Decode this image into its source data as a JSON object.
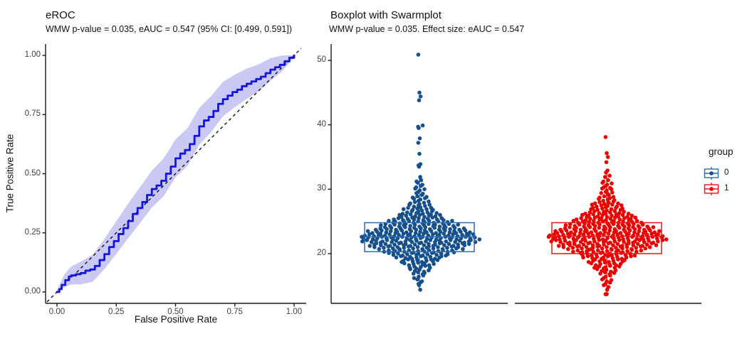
{
  "left_panel": {
    "title": "eROC",
    "subtitle": "WMW p-value = 0.035, eAUC = 0.547 (95% CI: [0.499, 0.591])",
    "xlabel": "False Positive Rate",
    "ylabel": "True Positive Rate",
    "x_tick_labels": [
      "0.00",
      "0.25",
      "0.50",
      "0.75",
      "1.00"
    ],
    "y_tick_labels": [
      "0.00",
      "0.25",
      "0.50",
      "0.75",
      "1.00"
    ]
  },
  "right_panel": {
    "title": "Boxplot with Swarmplot",
    "subtitle": "WMW p-value = 0.035. Effect size: eAUC = 0.547",
    "y_tick_labels": [
      "20",
      "30",
      "40",
      "50"
    ],
    "legend": {
      "title": "group",
      "items": [
        {
          "label": "0",
          "color": "#16508C",
          "box_color": "#2A6CB3"
        },
        {
          "label": "1",
          "color": "#ED0000",
          "box_color": "#EE1111"
        }
      ]
    }
  },
  "colors": {
    "roc_line": "#1414E0",
    "roc_ci_band": "#C9C9F3",
    "reference_line": "#000000",
    "axis": "#1a1a1a",
    "tick_text": "#404040",
    "group0": "#16508C",
    "group1": "#ED0000"
  },
  "chart_data": [
    {
      "type": "line",
      "title": "eROC",
      "subtitle": "WMW p-value = 0.035, eAUC = 0.547 (95% CI: [0.499, 0.591])",
      "xlabel": "False Positive Rate",
      "ylabel": "True Positive Rate",
      "xlim": [
        0,
        1
      ],
      "ylim": [
        0,
        1
      ],
      "x_ticks": [
        0,
        0.25,
        0.5,
        0.75,
        1
      ],
      "y_ticks": [
        0,
        0.25,
        0.5,
        0.75,
        1
      ],
      "grid": false,
      "annotations": {
        "wmw_p_value": 0.035,
        "eAUC": 0.547,
        "ci95": [
          0.499,
          0.591
        ]
      },
      "series": [
        {
          "name": "eROC curve",
          "style": "step",
          "points": [
            [
              0,
              0
            ],
            [
              0.01,
              0.012
            ],
            [
              0.02,
              0.03
            ],
            [
              0.035,
              0.05
            ],
            [
              0.05,
              0.065
            ],
            [
              0.06,
              0.07
            ],
            [
              0.08,
              0.075
            ],
            [
              0.1,
              0.08
            ],
            [
              0.12,
              0.09
            ],
            [
              0.14,
              0.095
            ],
            [
              0.16,
              0.11
            ],
            [
              0.18,
              0.135
            ],
            [
              0.2,
              0.16
            ],
            [
              0.22,
              0.19
            ],
            [
              0.24,
              0.215
            ],
            [
              0.26,
              0.245
            ],
            [
              0.28,
              0.27
            ],
            [
              0.3,
              0.3
            ],
            [
              0.32,
              0.33
            ],
            [
              0.34,
              0.355
            ],
            [
              0.36,
              0.38
            ],
            [
              0.38,
              0.41
            ],
            [
              0.4,
              0.435
            ],
            [
              0.42,
              0.45
            ],
            [
              0.44,
              0.47
            ],
            [
              0.46,
              0.5
            ],
            [
              0.48,
              0.53
            ],
            [
              0.5,
              0.565
            ],
            [
              0.52,
              0.585
            ],
            [
              0.54,
              0.6
            ],
            [
              0.56,
              0.625
            ],
            [
              0.58,
              0.66
            ],
            [
              0.6,
              0.7
            ],
            [
              0.62,
              0.725
            ],
            [
              0.64,
              0.74
            ],
            [
              0.66,
              0.765
            ],
            [
              0.68,
              0.795
            ],
            [
              0.7,
              0.815
            ],
            [
              0.72,
              0.83
            ],
            [
              0.74,
              0.845
            ],
            [
              0.76,
              0.855
            ],
            [
              0.78,
              0.87
            ],
            [
              0.8,
              0.88
            ],
            [
              0.82,
              0.89
            ],
            [
              0.84,
              0.9
            ],
            [
              0.86,
              0.91
            ],
            [
              0.88,
              0.925
            ],
            [
              0.9,
              0.94
            ],
            [
              0.92,
              0.95
            ],
            [
              0.94,
              0.96
            ],
            [
              0.96,
              0.975
            ],
            [
              0.98,
              0.99
            ],
            [
              1.0,
              1.0
            ]
          ]
        },
        {
          "name": "95% CI band",
          "style": "band",
          "points_flh": [
            [
              0,
              0,
              0.01
            ],
            [
              0.03,
              0.018,
              0.072
            ],
            [
              0.06,
              0.032,
              0.108
            ],
            [
              0.1,
              0.032,
              0.128
            ],
            [
              0.15,
              0.043,
              0.157
            ],
            [
              0.2,
              0.096,
              0.224
            ],
            [
              0.25,
              0.161,
              0.299
            ],
            [
              0.3,
              0.227,
              0.373
            ],
            [
              0.35,
              0.291,
              0.443
            ],
            [
              0.4,
              0.357,
              0.513
            ],
            [
              0.45,
              0.405,
              0.565
            ],
            [
              0.5,
              0.485,
              0.645
            ],
            [
              0.55,
              0.532,
              0.692
            ],
            [
              0.6,
              0.622,
              0.778
            ],
            [
              0.65,
              0.676,
              0.828
            ],
            [
              0.7,
              0.742,
              0.888
            ],
            [
              0.75,
              0.781,
              0.919
            ],
            [
              0.8,
              0.816,
              0.944
            ],
            [
              0.85,
              0.848,
              0.962
            ],
            [
              0.9,
              0.892,
              0.988
            ],
            [
              0.95,
              0.933,
              1.0
            ],
            [
              0.98,
              0.968,
              1.0
            ],
            [
              1.0,
              0.99,
              1.0
            ]
          ]
        },
        {
          "name": "chance diagonal",
          "style": "dashed",
          "points": [
            [
              0,
              0
            ],
            [
              1,
              1
            ]
          ]
        }
      ]
    },
    {
      "type": "swarm-boxplot",
      "title": "Boxplot with Swarmplot",
      "subtitle": "WMW p-value = 0.035. Effect size: eAUC = 0.547",
      "ylim": [
        12.5,
        52
      ],
      "y_ticks": [
        20,
        30,
        40,
        50
      ],
      "grid": false,
      "legend": {
        "title": "group",
        "position": "right"
      },
      "groups": [
        {
          "name": "0",
          "color": "#16508C",
          "box": {
            "q1": 20.3,
            "median": 22.6,
            "q3": 24.8,
            "whisker_low": 14.4,
            "whisker_high": 31.9
          },
          "swarm_profile": [
            [
              50.7,
              1
            ],
            [
              45.0,
              1
            ],
            [
              44.6,
              1
            ],
            [
              43.7,
              1
            ],
            [
              39.8,
              2
            ],
            [
              39.3,
              1
            ],
            [
              37.9,
              1
            ],
            [
              37.4,
              1
            ],
            [
              35.4,
              1
            ],
            [
              33.8,
              2
            ],
            [
              33.3,
              1
            ],
            [
              31.9,
              1
            ],
            [
              31.4,
              2
            ],
            [
              30.9,
              2
            ],
            [
              30.4,
              2
            ],
            [
              29.9,
              3
            ],
            [
              29.4,
              3
            ],
            [
              28.9,
              4
            ],
            [
              28.4,
              4
            ],
            [
              27.9,
              5
            ],
            [
              27.4,
              6
            ],
            [
              26.9,
              8
            ],
            [
              26.4,
              9
            ],
            [
              25.9,
              11
            ],
            [
              25.4,
              13
            ],
            [
              24.9,
              16
            ],
            [
              24.4,
              19
            ],
            [
              23.9,
              22
            ],
            [
              23.4,
              25
            ],
            [
              22.9,
              27
            ],
            [
              22.4,
              29
            ],
            [
              21.9,
              28
            ],
            [
              21.4,
              25
            ],
            [
              20.9,
              22
            ],
            [
              20.4,
              18
            ],
            [
              19.9,
              15
            ],
            [
              19.4,
              12
            ],
            [
              18.9,
              10
            ],
            [
              18.4,
              8
            ],
            [
              17.9,
              6
            ],
            [
              17.4,
              5
            ],
            [
              16.9,
              4
            ],
            [
              16.4,
              3
            ],
            [
              15.9,
              2
            ],
            [
              15.4,
              2
            ],
            [
              14.9,
              1
            ],
            [
              14.4,
              1
            ]
          ]
        },
        {
          "name": "1",
          "color": "#ED0000",
          "box": {
            "q1": 20.0,
            "median": 22.7,
            "q3": 24.8,
            "whisker_low": 13.6,
            "whisker_high": 33.0
          },
          "swarm_profile": [
            [
              37.9,
              1
            ],
            [
              35.6,
              1
            ],
            [
              35.2,
              1
            ],
            [
              34.1,
              1
            ],
            [
              33.0,
              1
            ],
            [
              32.4,
              1
            ],
            [
              31.9,
              2
            ],
            [
              31.4,
              2
            ],
            [
              30.9,
              3
            ],
            [
              30.4,
              3
            ],
            [
              29.9,
              3
            ],
            [
              29.4,
              4
            ],
            [
              28.9,
              4
            ],
            [
              28.4,
              5
            ],
            [
              27.9,
              6
            ],
            [
              27.4,
              8
            ],
            [
              26.9,
              9
            ],
            [
              26.4,
              11
            ],
            [
              25.9,
              13
            ],
            [
              25.4,
              15
            ],
            [
              24.9,
              17
            ],
            [
              24.4,
              20
            ],
            [
              23.9,
              23
            ],
            [
              23.4,
              26
            ],
            [
              22.9,
              28
            ],
            [
              22.4,
              29
            ],
            [
              21.9,
              27
            ],
            [
              21.4,
              24
            ],
            [
              20.9,
              21
            ],
            [
              20.4,
              17
            ],
            [
              19.9,
              14
            ],
            [
              19.4,
              12
            ],
            [
              18.9,
              10
            ],
            [
              18.4,
              8
            ],
            [
              17.9,
              7
            ],
            [
              17.4,
              5
            ],
            [
              16.9,
              4
            ],
            [
              16.4,
              3
            ],
            [
              15.9,
              3
            ],
            [
              15.4,
              2
            ],
            [
              14.9,
              2
            ],
            [
              14.4,
              1
            ],
            [
              13.9,
              1
            ],
            [
              13.6,
              1
            ]
          ]
        }
      ]
    }
  ]
}
